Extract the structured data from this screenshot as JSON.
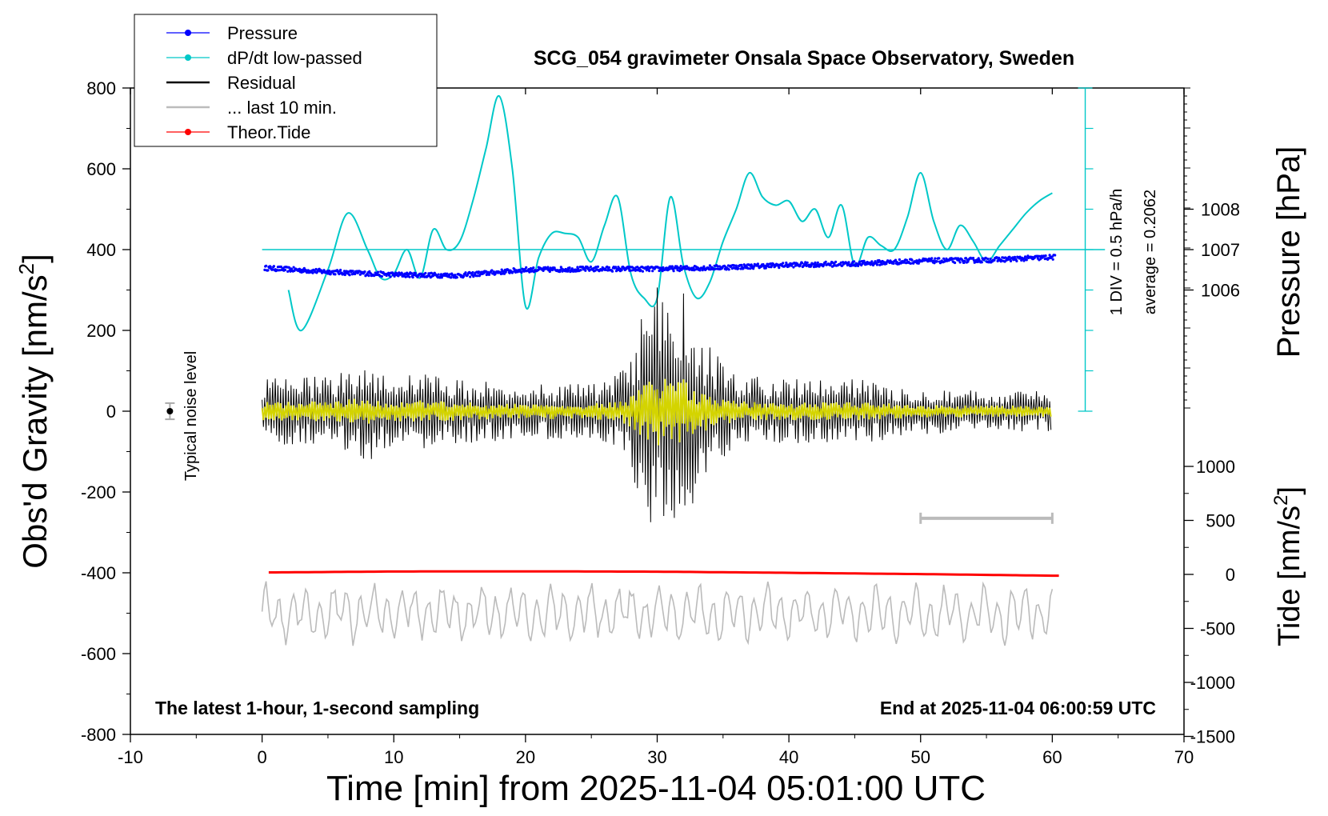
{
  "chart_data": {
    "type": "line",
    "title": "SCG_054 gravimeter Onsala Space Observatory, Sweden",
    "xlabel": "Time [min] from 2025-11-04 05:01:00 UTC",
    "ylabel_left": "Obs'd Gravity [nm/s",
    "ylabel_right_top": "Pressure [hPa]",
    "ylabel_right_bottom": "Tide [nm/s",
    "superscript": "2",
    "xlim": [
      -10,
      70
    ],
    "ylim": [
      -800,
      800
    ],
    "x_ticks": [
      "-10",
      "0",
      "10",
      "20",
      "30",
      "40",
      "50",
      "60",
      "70"
    ],
    "y_ticks": [
      "800",
      "600",
      "400",
      "200",
      "0",
      "-200",
      "-400",
      "-600",
      "-800"
    ],
    "pressure_axis": {
      "ticks": [
        "1008",
        "1007",
        "1006"
      ],
      "values": [
        1008,
        1007,
        1006
      ]
    },
    "tide_axis": {
      "ticks": [
        "1000",
        "500",
        "0",
        "-500",
        "-1000",
        "-1500"
      ],
      "values": [
        1000,
        500,
        0,
        -500,
        -1000,
        -1500
      ]
    },
    "legend": [
      {
        "label": "Pressure",
        "color": "#0000ff",
        "marker": true
      },
      {
        "label": "dP/dt low-passed",
        "color": "#00c8c8",
        "marker": true
      },
      {
        "label": "Residual",
        "color": "#000000",
        "marker": false
      },
      {
        "label": "... last 10 min.",
        "color": "#bbbbbb",
        "marker": false
      },
      {
        "label": "Theor.Tide",
        "color": "#ff0000",
        "marker": true
      }
    ],
    "legend_position": "top-left",
    "annotations": {
      "bottom_left": "The latest 1-hour, 1-second sampling",
      "bottom_right": "End at 2025-11-04 06:00:59 UTC",
      "noise": "Typical noise level",
      "div": "1 DIV = 0.5 hPa/h",
      "average": "average = 0.2062"
    },
    "series": [
      {
        "name": "Pressure",
        "color": "#0000ff",
        "unit": "hPa",
        "x": [
          0,
          5,
          10,
          15,
          20,
          25,
          30,
          35,
          40,
          45,
          50,
          55,
          60
        ],
        "y": [
          1006.55,
          1006.45,
          1006.38,
          1006.36,
          1006.5,
          1006.52,
          1006.52,
          1006.56,
          1006.62,
          1006.65,
          1006.72,
          1006.74,
          1006.81
        ]
      },
      {
        "name": "dP/dt low-passed",
        "color": "#00c8c8",
        "unit": "nm/s2 plot units",
        "x": [
          2,
          3,
          5,
          6.5,
          8,
          9,
          10,
          11,
          12,
          13,
          14,
          15,
          16,
          17,
          18,
          19,
          20,
          21,
          22,
          23,
          24,
          25,
          26,
          27,
          28,
          29,
          30,
          31,
          32,
          33,
          34,
          35,
          36,
          37,
          38,
          39,
          40,
          41,
          42,
          43,
          44,
          45,
          46,
          47,
          48,
          49,
          50,
          51,
          52,
          53,
          54,
          55,
          56,
          57,
          58,
          59,
          60
        ],
        "y": [
          300,
          200,
          350,
          490,
          400,
          330,
          340,
          400,
          330,
          450,
          400,
          420,
          520,
          650,
          780,
          600,
          260,
          380,
          440,
          440,
          430,
          370,
          460,
          530,
          340,
          280,
          280,
          530,
          360,
          280,
          320,
          420,
          500,
          590,
          530,
          510,
          520,
          470,
          500,
          430,
          510,
          360,
          430,
          410,
          400,
          480,
          590,
          470,
          400,
          460,
          420,
          370,
          410,
          450,
          490,
          520,
          540
        ]
      },
      {
        "name": "Residual",
        "color": "#000000",
        "unit": "nm/s2"
      },
      {
        "name": "... last 10 min.",
        "color": "#bbbbbb",
        "unit": "nm/s2"
      },
      {
        "name": "Theor.Tide",
        "color": "#ff0000",
        "unit": "nm/s2",
        "x": [
          0,
          10,
          20,
          30,
          40,
          50,
          60
        ],
        "y": [
          2,
          8,
          9,
          7,
          0,
          -8,
          -18
        ]
      }
    ],
    "dpdt_baseline": 400,
    "residual_envelope": {
      "x": [
        0,
        5,
        7,
        8,
        10,
        13,
        15,
        20,
        25,
        27,
        28,
        29,
        30,
        31,
        32,
        33,
        34,
        36,
        40,
        45,
        50,
        55,
        60
      ],
      "amplitude": [
        80,
        90,
        110,
        130,
        90,
        100,
        80,
        70,
        70,
        90,
        150,
        250,
        310,
        280,
        310,
        200,
        160,
        90,
        80,
        80,
        60,
        50,
        50
      ]
    },
    "noise_bar": {
      "x": -7,
      "y": 0,
      "error": 20
    },
    "ten_min_bar": {
      "x": [
        50,
        60
      ],
      "y": -265
    }
  }
}
